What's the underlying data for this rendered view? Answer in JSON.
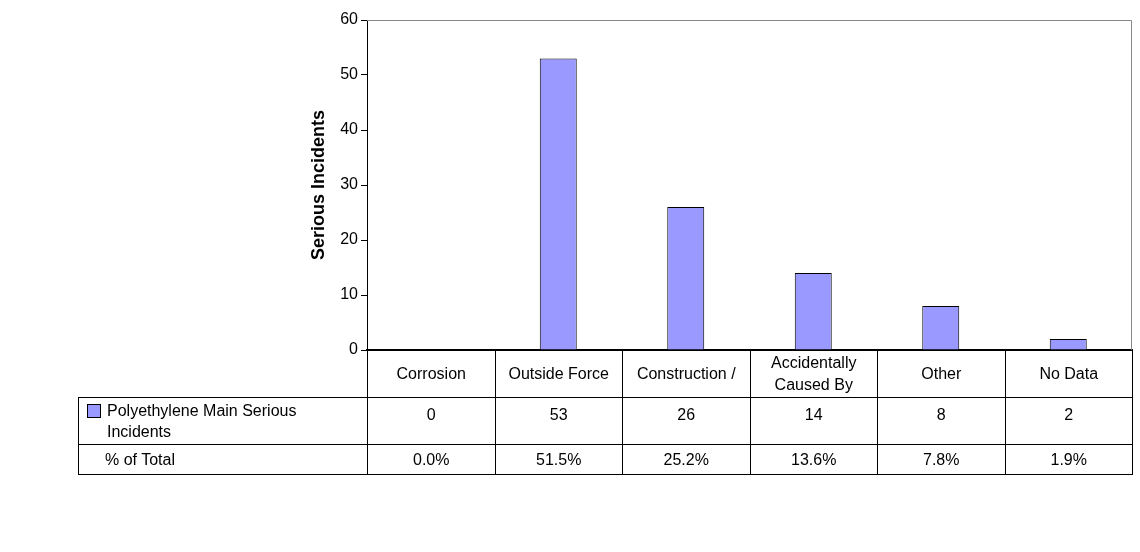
{
  "chart_data": {
    "type": "bar",
    "ylabel": "Serious Incidents",
    "categories": [
      "Corrosion",
      "Outside Force",
      "Construction /",
      "Accidentally Caused By",
      "Other",
      "No Data"
    ],
    "series": [
      {
        "name": "Polyethylene Main Serious Incidents",
        "color": "#9999ff",
        "values": [
          0,
          53,
          26,
          14,
          8,
          2
        ]
      }
    ],
    "ylim": [
      0,
      60
    ],
    "yticks": [
      0,
      10,
      20,
      30,
      40,
      50,
      60
    ],
    "grid": false,
    "legend": "bottom left",
    "data_labels": true,
    "annotations": [
      "% of Total",
      "0.0%",
      "51.5%",
      "25.2%",
      "13.6%",
      "7.8%",
      "1.9%"
    ]
  }
}
